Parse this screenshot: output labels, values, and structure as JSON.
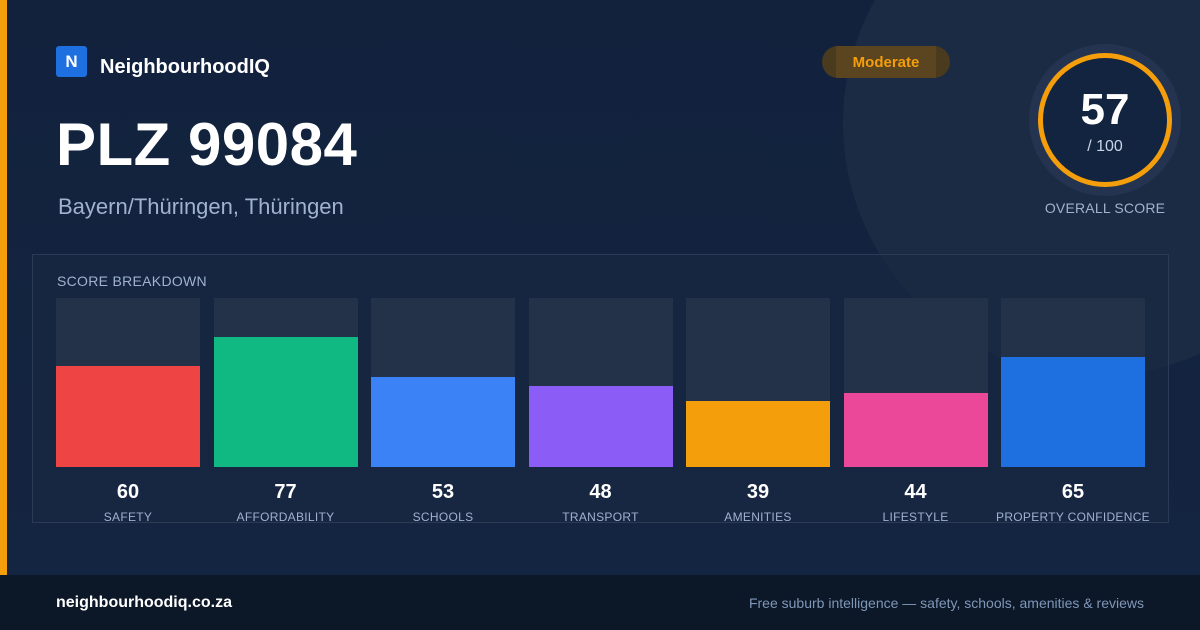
{
  "brand": {
    "logo_letter": "N",
    "name": "NeighbourhoodIQ"
  },
  "header": {
    "title": "PLZ 99084",
    "subtitle": "Bayern/Thüringen, Thüringen",
    "badge": "Moderate"
  },
  "overall": {
    "score": "57",
    "max": "/ 100",
    "label": "OVERALL SCORE"
  },
  "breakdown": {
    "heading": "SCORE BREAKDOWN",
    "chart_data": {
      "type": "bar",
      "categories": [
        "SAFETY",
        "AFFORDABILITY",
        "SCHOOLS",
        "TRANSPORT",
        "AMENITIES",
        "LIFESTYLE",
        "PROPERTY CONFIDENCE"
      ],
      "values": [
        60,
        77,
        53,
        48,
        39,
        44,
        65
      ],
      "colors": [
        "#ef4444",
        "#10b981",
        "#3b82f6",
        "#8b5cf6",
        "#f59e0b",
        "#ec4899",
        "#1e6fe0"
      ],
      "ylim": [
        0,
        100
      ]
    }
  },
  "footer": {
    "url": "neighbourhoodiq.co.za",
    "tagline": "Free suburb intelligence — safety, schools, amenities & reviews"
  },
  "colors": {
    "accent": "#f59e0b",
    "background": "#12213a",
    "footer": "#0c1728"
  }
}
